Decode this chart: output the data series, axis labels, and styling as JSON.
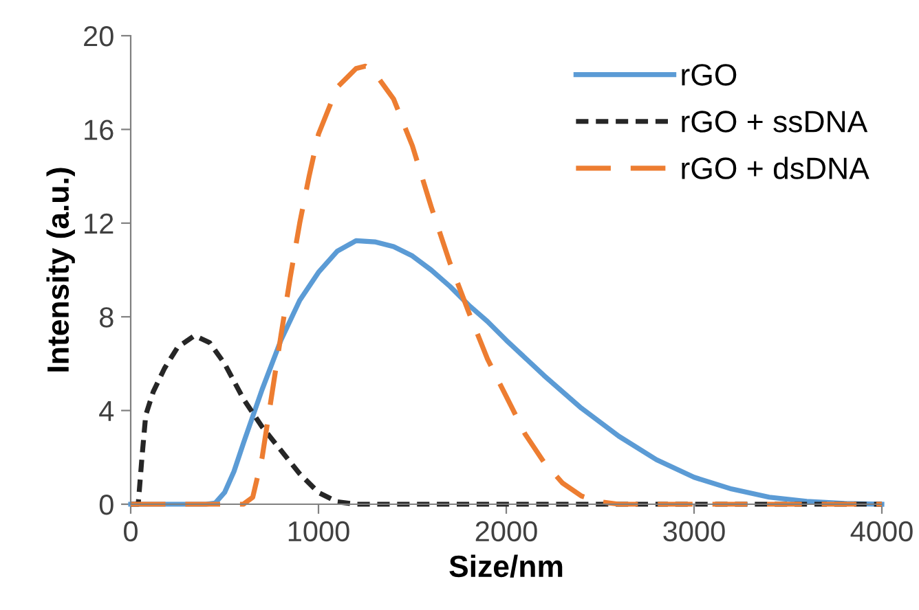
{
  "chart_data": {
    "type": "line",
    "xlabel": "Size/nm",
    "ylabel": "Intensity (a.u.)",
    "xlim": [
      0,
      4000
    ],
    "xticks": [
      0,
      1000,
      2000,
      3000,
      4000
    ],
    "ylim": [
      0,
      20
    ],
    "yticks": [
      0,
      4,
      8,
      12,
      16,
      20
    ],
    "grid": false,
    "legend": "top right",
    "marker": "none",
    "series": [
      {
        "name": "rGO",
        "color": "#5b9bd5",
        "line_style": "solid",
        "x": [
          0,
          400,
          450,
          500,
          550,
          600,
          700,
          800,
          900,
          1000,
          1100,
          1200,
          1300,
          1400,
          1500,
          1600,
          1700,
          1800,
          1900,
          2000,
          2200,
          2400,
          2600,
          2800,
          3000,
          3200,
          3400,
          3600,
          3800,
          4000
        ],
        "values": [
          0,
          0,
          0.05,
          0.5,
          1.4,
          2.6,
          4.9,
          7.0,
          8.7,
          9.9,
          10.8,
          11.25,
          11.2,
          11.0,
          10.6,
          10.0,
          9.3,
          8.5,
          7.8,
          7.0,
          5.5,
          4.1,
          2.9,
          1.9,
          1.15,
          0.65,
          0.3,
          0.12,
          0.03,
          0
        ]
      },
      {
        "name": "rGO + ssDNA",
        "color": "#262626",
        "line_style": "dotted",
        "x": [
          0,
          40,
          60,
          80,
          120,
          180,
          250,
          340,
          420,
          500,
          600,
          700,
          800,
          900,
          1000,
          1100,
          1200,
          4000
        ],
        "values": [
          0,
          0,
          2.0,
          3.8,
          4.8,
          5.8,
          6.7,
          7.2,
          6.9,
          6.0,
          4.5,
          3.3,
          2.3,
          1.3,
          0.5,
          0.1,
          0,
          0
        ]
      },
      {
        "name": "rGO + dsDNA",
        "color": "#ed7d31",
        "line_style": "dashed",
        "x": [
          0,
          600,
          650,
          700,
          750,
          800,
          850,
          900,
          950,
          1000,
          1100,
          1200,
          1250,
          1300,
          1400,
          1500,
          1600,
          1700,
          1800,
          1900,
          2000,
          2100,
          2200,
          2300,
          2400,
          2500,
          2600,
          4000
        ],
        "values": [
          0,
          0,
          0.3,
          2.0,
          4.6,
          7.2,
          9.7,
          12.0,
          14.0,
          15.8,
          17.8,
          18.6,
          18.7,
          18.4,
          17.3,
          15.3,
          12.7,
          10.3,
          8.2,
          6.2,
          4.6,
          3.0,
          1.8,
          0.9,
          0.35,
          0.1,
          0,
          0
        ]
      }
    ]
  }
}
